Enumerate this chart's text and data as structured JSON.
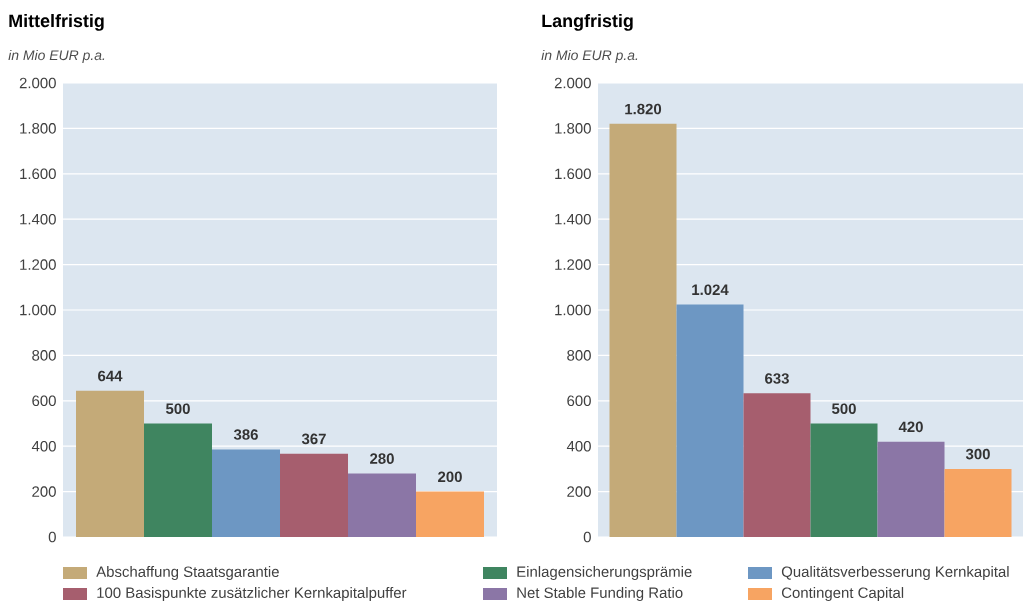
{
  "chart_data": [
    {
      "type": "bar",
      "title": "Mittelfristig",
      "subtitle": "in Mio EUR p.a.",
      "categories": [
        null
      ],
      "series": [
        {
          "name": "Abschaffung Staatsgarantie",
          "color": "#c4aa78",
          "values": [
            644
          ],
          "value_labels": [
            "644"
          ]
        },
        {
          "name": "Einlagensicherungsprämie",
          "color": "#3f8560",
          "values": [
            500
          ],
          "value_labels": [
            "500"
          ]
        },
        {
          "name": "Qualitätsverbesserung Kernkapital",
          "color": "#6d97c3",
          "values": [
            386
          ],
          "value_labels": [
            "386"
          ]
        },
        {
          "name": "100 Basispunkte zusätzlicher Kernkapitalpuffer",
          "color": "#a65e6e",
          "values": [
            367
          ],
          "value_labels": [
            "367"
          ]
        },
        {
          "name": "Net Stable Funding Ratio",
          "color": "#8b76a6",
          "values": [
            280
          ],
          "value_labels": [
            "280"
          ]
        },
        {
          "name": "Contingent Capital",
          "color": "#f7a462",
          "values": [
            200
          ],
          "value_labels": [
            "200"
          ]
        }
      ],
      "ylim": [
        0,
        2000
      ],
      "yticks": [
        0,
        200,
        400,
        600,
        800,
        {
          "value": 1000,
          "label": "1.000"
        },
        {
          "value": 1200,
          "label": "1.200"
        },
        {
          "value": 1400,
          "label": "1.400"
        },
        {
          "value": 1600,
          "label": "1.600"
        },
        {
          "value": 1800,
          "label": "1.800"
        },
        {
          "value": 2000,
          "label": "2.000"
        }
      ],
      "grid": "y",
      "legend": "bottom"
    },
    {
      "type": "bar",
      "title": "Langfristig",
      "subtitle": "in Mio EUR p.a.",
      "categories": [
        null
      ],
      "series": [
        {
          "color": "#c4aa78",
          "values": [
            1820
          ],
          "value_labels": [
            "1.820"
          ]
        },
        {
          "color": "#6d97c3",
          "values": [
            1024
          ],
          "value_labels": [
            "1.024"
          ]
        },
        {
          "color": "#a65e6e",
          "values": [
            633
          ],
          "value_labels": [
            "633"
          ]
        },
        {
          "color": "#3f8560",
          "values": [
            500
          ],
          "value_labels": [
            "500"
          ]
        },
        {
          "color": "#8b76a6",
          "values": [
            420
          ],
          "value_labels": [
            "420"
          ]
        },
        {
          "color": "#f7a462",
          "values": [
            300
          ],
          "value_labels": [
            "300"
          ]
        }
      ],
      "ylim": [
        0,
        2000
      ],
      "yticks": [
        0,
        200,
        400,
        600,
        800,
        {
          "value": 1000,
          "label": "1.000"
        },
        {
          "value": 1200,
          "label": "1.200"
        },
        {
          "value": 1400,
          "label": "1.400"
        },
        {
          "value": 1600,
          "label": "1.600"
        },
        {
          "value": 1800,
          "label": "1.800"
        },
        {
          "value": 2000,
          "label": "2.000"
        }
      ],
      "grid": "y"
    }
  ]
}
